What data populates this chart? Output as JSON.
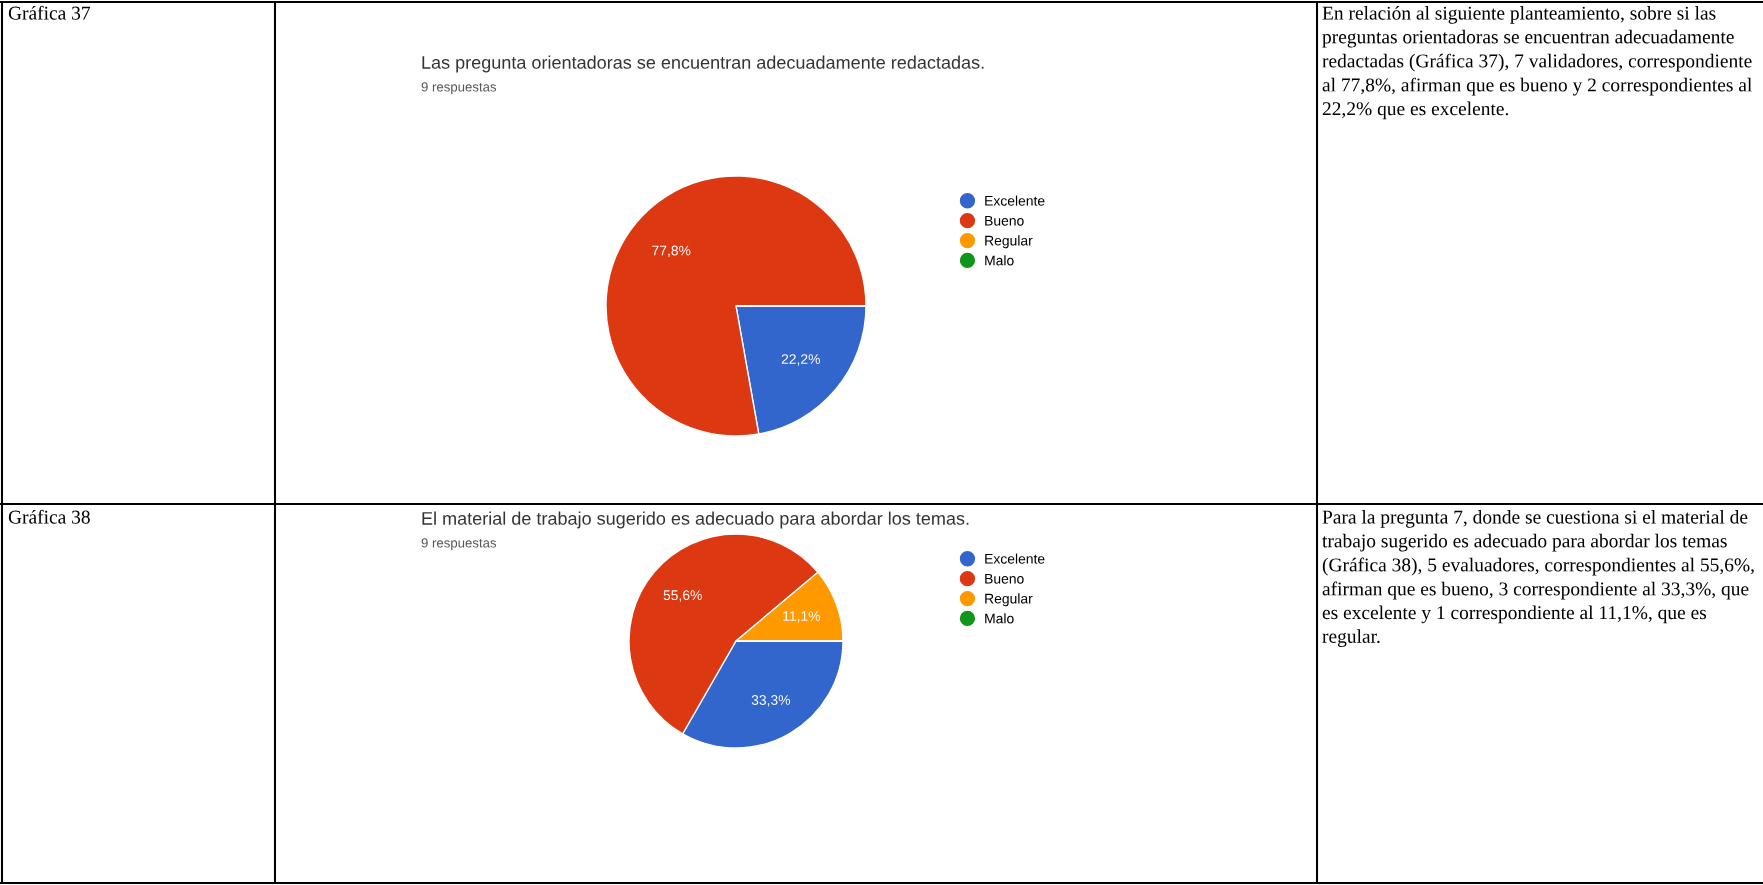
{
  "chart_data": [
    {
      "type": "pie",
      "title": "Las pregunta orientadoras se encuentran adecuadamente redactadas.",
      "subtitle": "9 respuestas",
      "categories": [
        "Excelente",
        "Bueno",
        "Regular",
        "Malo"
      ],
      "values": [
        22.2,
        77.8,
        0,
        0
      ],
      "colors": [
        "#3366cc",
        "#dc3912",
        "#ff9900",
        "#109618"
      ],
      "value_labels": [
        "22,2%",
        "77,8%",
        null,
        null
      ],
      "legend": "right",
      "annotations": [
        "Gráfica 37",
        "En relación al siguiente planteamiento, sobre si las preguntas orientadoras se encuentran adecuadamente redactadas (Gráfica 37), 7 validadores, correspondiente al 77,8%, afirman que es bueno y 2 correspondientes al 22,2% que es excelente."
      ]
    },
    {
      "type": "pie",
      "title": "El material de trabajo sugerido es adecuado para abordar los temas.",
      "subtitle": "9 respuestas",
      "categories": [
        "Excelente",
        "Bueno",
        "Regular",
        "Malo"
      ],
      "values": [
        33.3,
        55.6,
        11.1,
        0
      ],
      "colors": [
        "#3366cc",
        "#dc3912",
        "#ff9900",
        "#109618"
      ],
      "value_labels": [
        "33,3%",
        "55,6%",
        "11,1%",
        null
      ],
      "legend": "right",
      "annotations": [
        "Gráfica 38",
        "Para la pregunta 7, donde se cuestiona si el material de trabajo sugerido es adecuado para abordar los temas (Gráfica 38), 5 evaluadores, correspondientes al 55,6%, afirman que es bueno, 3 correspondiente al 33,3%, que es excelente y 1 correspondiente al 11,1%, que es regular."
      ]
    }
  ]
}
